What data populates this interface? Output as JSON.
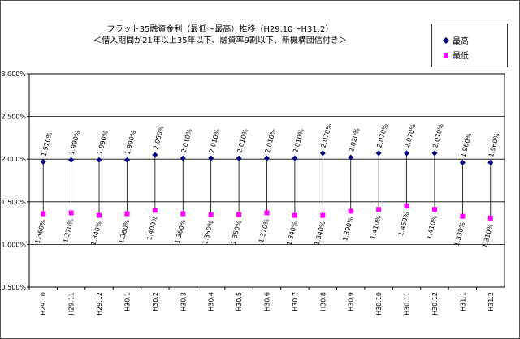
{
  "chart_data": {
    "type": "scatter",
    "title": "フラット35融資金利（最低～最高）推移（H29.10～H31.2）",
    "subtitle": "＜借入期間が21年以上35年以下、融資率9割以下、新機構団信付き＞",
    "xlabel": "",
    "ylabel": "",
    "ylim": [
      0.5,
      3.0
    ],
    "yticks": [
      "0.500%",
      "1.000%",
      "1.500%",
      "2.000%",
      "2.500%",
      "3.000%"
    ],
    "grid": true,
    "legend_position": "top-right",
    "categories": [
      "H29.10",
      "H29.11",
      "H29.12",
      "H30.1",
      "H30.2",
      "H30.3",
      "H30.4",
      "H30.5",
      "H30.6",
      "H30.7",
      "H30.8",
      "H30.9",
      "H30.10",
      "H30.11",
      "H30.12",
      "H31.1",
      "H31.2"
    ],
    "series": [
      {
        "name": "最高",
        "color": "#00007f",
        "marker": "diamond",
        "values": [
          1.97,
          1.99,
          1.99,
          1.99,
          2.05,
          2.01,
          2.01,
          2.01,
          2.01,
          2.01,
          2.07,
          2.02,
          2.07,
          2.07,
          2.07,
          1.96,
          1.96
        ],
        "labels": [
          "1.970%",
          "1.990%",
          "1.990%",
          "1.990%",
          "2.050%",
          "2.010%",
          "2.010%",
          "2.010%",
          "2.010%",
          "2.010%",
          "2.070%",
          "2.020%",
          "2.070%",
          "2.070%",
          "2.070%",
          "1.960%",
          "1.960%"
        ]
      },
      {
        "name": "最低",
        "color": "#ff00ff",
        "marker": "square",
        "values": [
          1.36,
          1.37,
          1.34,
          1.36,
          1.4,
          1.36,
          1.35,
          1.35,
          1.37,
          1.34,
          1.34,
          1.39,
          1.41,
          1.45,
          1.41,
          1.33,
          1.31
        ],
        "labels": [
          "1.360%",
          "1.370%",
          "1.340%",
          "1.360%",
          "1.400%",
          "1.360%",
          "1.350%",
          "1.350%",
          "1.370%",
          "1.340%",
          "1.340%",
          "1.390%",
          "1.410%",
          "1.450%",
          "1.410%",
          "1.330%",
          "1.310%"
        ]
      }
    ]
  }
}
